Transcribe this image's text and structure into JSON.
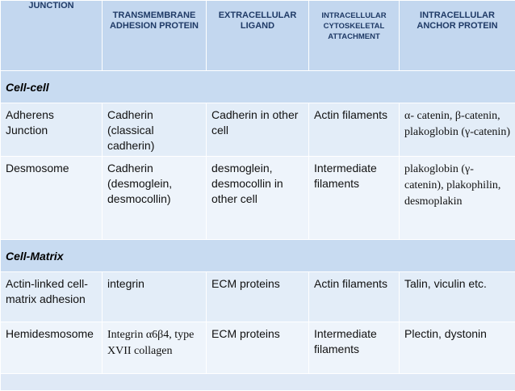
{
  "headers": [
    "JUNCTION",
    "TRANSMEMBRANE ADHESION PROTEIN",
    "EXTRACELLULAR LIGAND",
    "INTRACELLULAR CYTOSKELETAL ATTACHMENT",
    "INTRACELLULAR ANCHOR PROTEIN"
  ],
  "sections": [
    {
      "title": "Cell-cell",
      "rows": [
        [
          "Adherens Junction",
          "Cadherin (classical cadherin)",
          "Cadherin in other cell",
          "Actin filaments",
          "α- catenin, β-catenin, plakoglobin (γ-catenin)"
        ],
        [
          "Desmosome",
          "Cadherin (desmoglein, desmocollin)",
          "desmoglein, desmocollin in other cell",
          "Intermediate filaments",
          "plakoglobin (γ-catenin), plakophilin, desmoplakin"
        ]
      ]
    },
    {
      "title": "Cell-Matrix",
      "rows": [
        [
          "Actin-linked cell-matrix adhesion",
          "integrin",
          "ECM proteins",
          "Actin filaments",
          "Talin, viculin etc."
        ],
        [
          "Hemidesmosome",
          "Integrin α6β4, type XVII collagen",
          "ECM proteins",
          "Intermediate filaments",
          "Plectin, dystonin"
        ]
      ]
    }
  ]
}
